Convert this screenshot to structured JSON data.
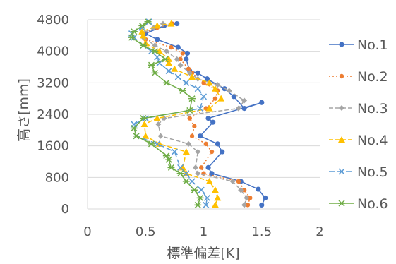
{
  "chart_data": {
    "type": "line",
    "title": "",
    "xlabel": "標準偏差[K]",
    "ylabel": "高さ[mm]",
    "xlim": [
      0,
      2
    ],
    "ylim": [
      0,
      4800
    ],
    "xticks": [
      "0",
      "0.5",
      "1",
      "1.5",
      "2"
    ],
    "yticks": [
      "0",
      "800",
      "1600",
      "2400",
      "3200",
      "4000",
      "4800"
    ],
    "grid": "horizontal",
    "legend": "right",
    "series": [
      {
        "name": "No.1",
        "color": "#4472C4",
        "dash": "",
        "marker": "circle",
        "points": [
          [
            1.5,
            100
          ],
          [
            1.53,
            280
          ],
          [
            1.47,
            500
          ],
          [
            1.32,
            700
          ],
          [
            1.07,
            900
          ],
          [
            1.04,
            1050
          ],
          [
            1.16,
            1450
          ],
          [
            1.12,
            1650
          ],
          [
            0.97,
            1850
          ],
          [
            1.08,
            2200
          ],
          [
            1.04,
            2300
          ],
          [
            1.5,
            2700
          ],
          [
            1.35,
            2550
          ],
          [
            1.26,
            2850
          ],
          [
            1.18,
            3050
          ],
          [
            1.03,
            3300
          ],
          [
            0.95,
            3450
          ],
          [
            0.88,
            3500
          ],
          [
            0.85,
            3800
          ],
          [
            0.86,
            3950
          ],
          [
            0.78,
            4100
          ],
          [
            0.6,
            4300
          ],
          [
            0.5,
            4450
          ],
          [
            0.66,
            4650
          ],
          [
            0.77,
            4700
          ]
        ]
      },
      {
        "name": "No.2",
        "color": "#ED7D31",
        "dash": "2,3",
        "marker": "dot",
        "points": [
          [
            1.38,
            100
          ],
          [
            1.4,
            280
          ],
          [
            1.35,
            480
          ],
          [
            1.3,
            700
          ],
          [
            1.0,
            900
          ],
          [
            0.98,
            1050
          ],
          [
            1.07,
            1450
          ],
          [
            1.02,
            1650
          ],
          [
            0.9,
            1850
          ],
          [
            0.92,
            2100
          ],
          [
            0.88,
            2300
          ],
          [
            1.02,
            2550
          ],
          [
            1.1,
            2800
          ],
          [
            1.12,
            3000
          ],
          [
            1.0,
            3200
          ],
          [
            0.9,
            3450
          ],
          [
            0.87,
            3550
          ],
          [
            0.8,
            3800
          ],
          [
            0.82,
            3950
          ],
          [
            0.72,
            4100
          ],
          [
            0.5,
            4300
          ],
          [
            0.48,
            4450
          ],
          [
            0.6,
            4600
          ],
          [
            0.73,
            4700
          ]
        ]
      },
      {
        "name": "No.3",
        "color": "#A5A5A5",
        "dash": "6,3",
        "marker": "diamond",
        "points": [
          [
            1.35,
            100
          ],
          [
            1.37,
            280
          ],
          [
            1.32,
            480
          ],
          [
            1.25,
            700
          ],
          [
            0.95,
            900
          ],
          [
            0.93,
            1050
          ],
          [
            0.95,
            1450
          ],
          [
            0.87,
            1650
          ],
          [
            0.63,
            1850
          ],
          [
            0.61,
            2150
          ],
          [
            0.66,
            2300
          ],
          [
            1.3,
            2550
          ],
          [
            1.35,
            2750
          ],
          [
            1.22,
            3000
          ],
          [
            1.12,
            3150
          ],
          [
            0.95,
            3300
          ],
          [
            0.88,
            3450
          ],
          [
            0.8,
            3650
          ],
          [
            0.77,
            3800
          ],
          [
            0.68,
            4000
          ],
          [
            0.58,
            4150
          ],
          [
            0.48,
            4350
          ],
          [
            0.47,
            4450
          ],
          [
            0.57,
            4600
          ],
          [
            0.65,
            4700
          ]
        ]
      },
      {
        "name": "No.4",
        "color": "#FFC000",
        "dash": "6,3",
        "marker": "triangle",
        "points": [
          [
            1.1,
            100
          ],
          [
            1.12,
            280
          ],
          [
            1.1,
            480
          ],
          [
            1.05,
            700
          ],
          [
            0.85,
            900
          ],
          [
            0.82,
            1050
          ],
          [
            0.85,
            1450
          ],
          [
            0.62,
            1650
          ],
          [
            0.5,
            1850
          ],
          [
            0.49,
            2150
          ],
          [
            0.6,
            2300
          ],
          [
            1.05,
            2550
          ],
          [
            1.15,
            2800
          ],
          [
            1.1,
            3050
          ],
          [
            1.05,
            3200
          ],
          [
            0.9,
            3350
          ],
          [
            0.75,
            3550
          ],
          [
            0.7,
            3700
          ],
          [
            0.7,
            3800
          ],
          [
            0.62,
            4000
          ],
          [
            0.5,
            4200
          ],
          [
            0.48,
            4400
          ],
          [
            0.47,
            4500
          ],
          [
            0.6,
            4650
          ],
          [
            0.72,
            4700
          ]
        ]
      },
      {
        "name": "No.5",
        "color": "#5B9BD5",
        "dash": "8,4",
        "marker": "x",
        "points": [
          [
            1.02,
            100
          ],
          [
            1.03,
            280
          ],
          [
            0.98,
            480
          ],
          [
            0.9,
            700
          ],
          [
            0.85,
            900
          ],
          [
            0.8,
            1050
          ],
          [
            0.75,
            1450
          ],
          [
            0.6,
            1650
          ],
          [
            0.42,
            1850
          ],
          [
            0.4,
            2150
          ],
          [
            0.5,
            2300
          ],
          [
            0.97,
            2550
          ],
          [
            1.0,
            2850
          ],
          [
            0.95,
            3050
          ],
          [
            0.85,
            3200
          ],
          [
            0.78,
            3350
          ],
          [
            0.7,
            3500
          ],
          [
            0.62,
            3700
          ],
          [
            0.6,
            3850
          ],
          [
            0.55,
            4000
          ],
          [
            0.48,
            4150
          ],
          [
            0.4,
            4350
          ],
          [
            0.38,
            4450
          ],
          [
            0.47,
            4600
          ],
          [
            0.53,
            4750
          ]
        ]
      },
      {
        "name": "No.6",
        "color": "#70AD47",
        "dash": "",
        "marker": "star",
        "points": [
          [
            0.95,
            100
          ],
          [
            0.97,
            280
          ],
          [
            0.92,
            480
          ],
          [
            0.85,
            700
          ],
          [
            0.8,
            900
          ],
          [
            0.72,
            1050
          ],
          [
            0.7,
            1250
          ],
          [
            0.68,
            1350
          ],
          [
            0.55,
            1650
          ],
          [
            0.42,
            1850
          ],
          [
            0.4,
            2050
          ],
          [
            0.48,
            2300
          ],
          [
            0.88,
            2500
          ],
          [
            0.9,
            2800
          ],
          [
            0.82,
            3000
          ],
          [
            0.68,
            3200
          ],
          [
            0.58,
            3450
          ],
          [
            0.55,
            3650
          ],
          [
            0.67,
            3800
          ],
          [
            0.58,
            4000
          ],
          [
            0.48,
            4150
          ],
          [
            0.38,
            4350
          ],
          [
            0.4,
            4500
          ],
          [
            0.47,
            4650
          ],
          [
            0.52,
            4750
          ]
        ]
      }
    ]
  }
}
